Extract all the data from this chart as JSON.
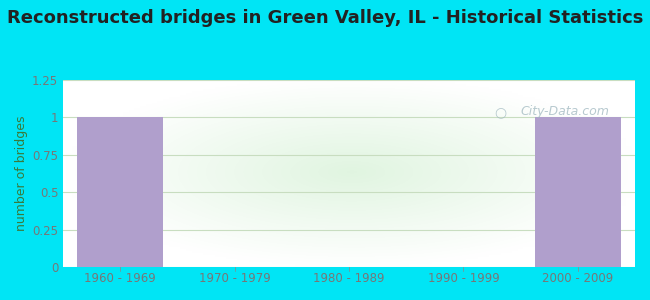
{
  "title": "Reconstructed bridges in Green Valley, IL - Historical Statistics",
  "categories": [
    "1960 - 1969",
    "1970 - 1979",
    "1980 - 1989",
    "1990 - 1999",
    "2000 - 2009"
  ],
  "values": [
    1,
    0,
    0,
    0,
    1
  ],
  "bar_color": "#b09fcc",
  "ylabel": "number of bridges",
  "ylim": [
    0,
    1.25
  ],
  "yticks": [
    0,
    0.25,
    0.5,
    0.75,
    1,
    1.25
  ],
  "background_outer": "#00e5f5",
  "background_plot": "#e8f5e0",
  "grid_color": "#d8e8c8",
  "title_color": "#222222",
  "title_fontsize": 13,
  "axis_label_color": "#777777",
  "tick_label_color": "#777777",
  "watermark": "City-Data.com"
}
